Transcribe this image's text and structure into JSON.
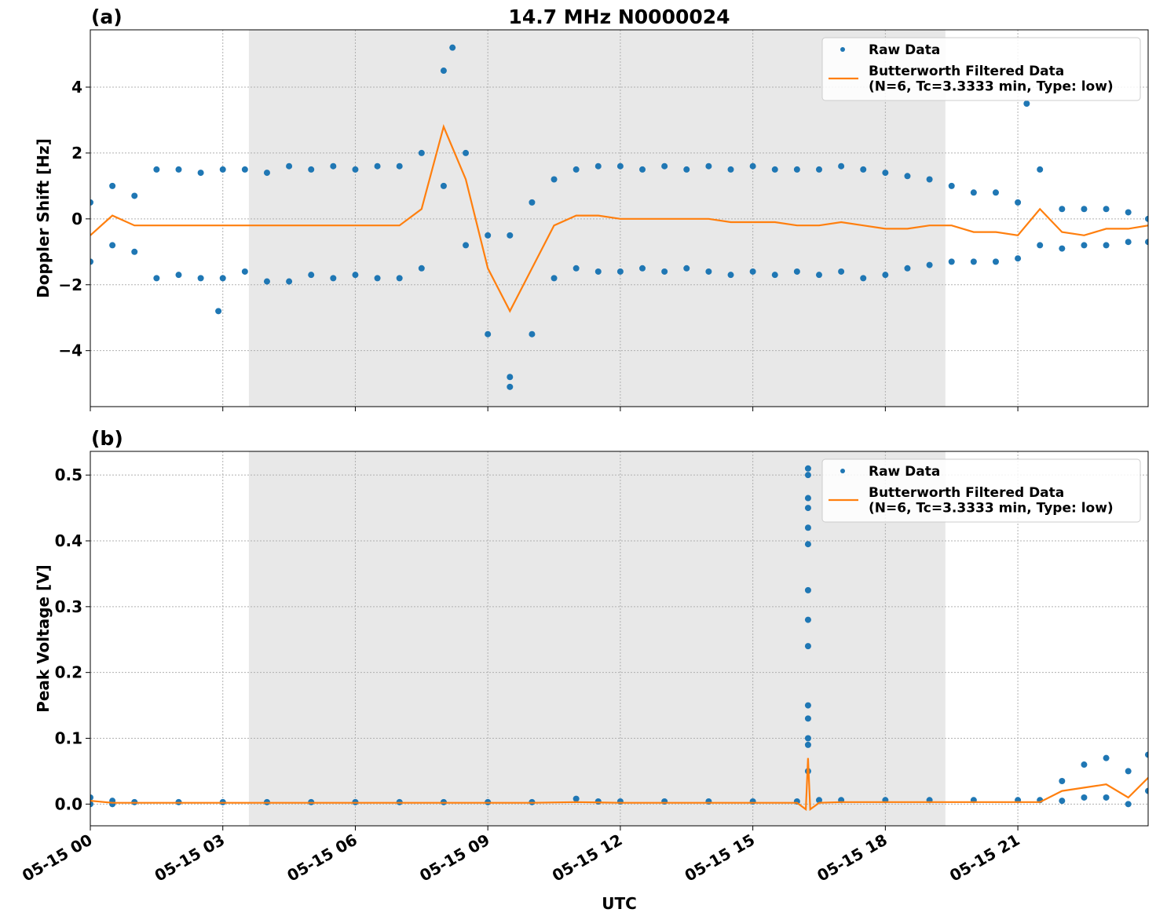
{
  "chart_data": [
    {
      "type": "scatter-line",
      "title": "14.7 MHz N0000024",
      "panel_label": "(a)",
      "ylabel": "Doppler Shift [Hz]",
      "xlim": [
        0,
        23.95
      ],
      "ylim": [
        -5.7,
        5.74
      ],
      "xticks": [
        0,
        3,
        6,
        9,
        12,
        15,
        18,
        21
      ],
      "yticks": [
        {
          "value": -4,
          "label": "−4"
        },
        {
          "value": -2,
          "label": "−2"
        },
        0,
        2,
        4
      ],
      "grid": true,
      "legend": "upper right",
      "shaded_xrange": [
        3.59,
        19.36
      ],
      "shade_color": "#e8e8e8",
      "series": [
        {
          "name": "Raw Data",
          "color": "#1f77b4",
          "mode": "points",
          "x": [
            0,
            0,
            0.5,
            0.5,
            1,
            1,
            1.5,
            1.5,
            2,
            2,
            2.5,
            2.5,
            3,
            3,
            3.5,
            3.5,
            4,
            4,
            4.5,
            4.5,
            5,
            5,
            5.5,
            5.5,
            6,
            6,
            6.5,
            6.5,
            7,
            7,
            7.5,
            7.5,
            8,
            8,
            8.5,
            8.5,
            9,
            9,
            9.5,
            9.5,
            10,
            10,
            10.5,
            10.5,
            11,
            11,
            11.5,
            11.5,
            12,
            12,
            12.5,
            12.5,
            13,
            13,
            13.5,
            13.5,
            14,
            14,
            14.5,
            14.5,
            15,
            15,
            15.5,
            15.5,
            16,
            16,
            16.5,
            16.5,
            17,
            17,
            17.5,
            17.5,
            18,
            18,
            18.5,
            18.5,
            19,
            19,
            19.5,
            19.5,
            20,
            20,
            20.5,
            20.5,
            21,
            21,
            21.5,
            21.5,
            22,
            22,
            22.5,
            22.5,
            23,
            23,
            23.5,
            23.5,
            23.95,
            23.95,
            8.2,
            9.5,
            21.2,
            2.9
          ],
          "values": [
            0.5,
            -1.3,
            1.0,
            -0.8,
            0.7,
            -1.0,
            1.5,
            -1.8,
            1.5,
            -1.7,
            1.4,
            -1.8,
            1.5,
            -1.8,
            1.5,
            -1.6,
            1.4,
            -1.9,
            1.6,
            -1.9,
            1.5,
            -1.7,
            1.6,
            -1.8,
            1.5,
            -1.7,
            1.6,
            -1.8,
            1.6,
            -1.8,
            2.0,
            -1.5,
            4.5,
            1.0,
            2.0,
            -0.8,
            -0.5,
            -3.5,
            -0.5,
            -4.8,
            0.5,
            -3.5,
            1.2,
            -1.8,
            1.5,
            -1.5,
            1.6,
            -1.6,
            1.6,
            -1.6,
            1.5,
            -1.5,
            1.6,
            -1.6,
            1.5,
            -1.5,
            1.6,
            -1.6,
            1.5,
            -1.7,
            1.6,
            -1.6,
            1.5,
            -1.7,
            1.5,
            -1.6,
            1.5,
            -1.7,
            1.6,
            -1.6,
            1.5,
            -1.8,
            1.4,
            -1.7,
            1.3,
            -1.5,
            1.2,
            -1.4,
            1.0,
            -1.3,
            0.8,
            -1.3,
            0.8,
            -1.3,
            0.5,
            -1.2,
            1.5,
            -0.8,
            0.3,
            -0.9,
            0.3,
            -0.8,
            0.3,
            -0.8,
            0.2,
            -0.7,
            0.0,
            -0.7,
            5.2,
            -5.1,
            3.5,
            -2.8
          ]
        },
        {
          "name": "Butterworth Filtered Data\n(N=6, Tc=3.3333 min, Type: low)",
          "color": "#ff7f0e",
          "mode": "line",
          "x": [
            0,
            0.5,
            1,
            1.5,
            2,
            2.5,
            3,
            3.5,
            4,
            4.5,
            5,
            5.5,
            6,
            6.5,
            7,
            7.5,
            8,
            8.5,
            9,
            9.5,
            10,
            10.5,
            11,
            11.5,
            12,
            12.5,
            13,
            13.5,
            14,
            14.5,
            15,
            15.5,
            16,
            16.5,
            17,
            17.5,
            18,
            18.5,
            19,
            19.5,
            20,
            20.5,
            21,
            21.5,
            22,
            22.5,
            23,
            23.5,
            23.95
          ],
          "values": [
            -0.5,
            0.1,
            -0.2,
            -0.2,
            -0.2,
            -0.2,
            -0.2,
            -0.2,
            -0.2,
            -0.2,
            -0.2,
            -0.2,
            -0.2,
            -0.2,
            -0.2,
            0.3,
            2.8,
            1.2,
            -1.5,
            -2.8,
            -1.5,
            -0.2,
            0.1,
            0.1,
            0.0,
            0.0,
            0.0,
            0.0,
            0.0,
            -0.1,
            -0.1,
            -0.1,
            -0.2,
            -0.2,
            -0.1,
            -0.2,
            -0.3,
            -0.3,
            -0.2,
            -0.2,
            -0.4,
            -0.4,
            -0.5,
            0.3,
            -0.4,
            -0.5,
            -0.3,
            -0.3,
            -0.2
          ]
        }
      ]
    },
    {
      "type": "scatter-line",
      "panel_label": "(b)",
      "ylabel": "Peak Voltage [V]",
      "xlabel": "UTC",
      "xlim": [
        0,
        23.95
      ],
      "ylim": [
        -0.033,
        0.536
      ],
      "xticks": [
        {
          "value": 0,
          "label": "05-15 00"
        },
        {
          "value": 3,
          "label": "05-15 03"
        },
        {
          "value": 6,
          "label": "05-15 06"
        },
        {
          "value": 9,
          "label": "05-15 09"
        },
        {
          "value": 12,
          "label": "05-15 12"
        },
        {
          "value": 15,
          "label": "05-15 15"
        },
        {
          "value": 18,
          "label": "05-15 18"
        },
        {
          "value": 21,
          "label": "05-15 21"
        }
      ],
      "yticks": [
        {
          "value": 0,
          "label": "0.0"
        },
        0.1,
        0.2,
        0.3,
        0.4,
        0.5
      ],
      "grid": true,
      "legend": "upper right",
      "shaded_xrange": [
        3.59,
        19.36
      ],
      "shade_color": "#e8e8e8",
      "series": [
        {
          "name": "Raw Data",
          "color": "#1f77b4",
          "mode": "points",
          "x": [
            0,
            0,
            0.5,
            0.5,
            1,
            2,
            3,
            4,
            5,
            6,
            7,
            8,
            9,
            10,
            11,
            11.5,
            12,
            13,
            14,
            15,
            16,
            16.5,
            17,
            18,
            19,
            20,
            21,
            21.5,
            22,
            22,
            22.5,
            22.5,
            23,
            23,
            23.5,
            23.5,
            23.95,
            23.95,
            16.25,
            16.25,
            16.25,
            16.25,
            16.25,
            16.25,
            16.25,
            16.25,
            16.25,
            16.25,
            16.25,
            16.25,
            16.25,
            16.25
          ],
          "values": [
            0.01,
            0.0,
            0.005,
            0.0,
            0.003,
            0.003,
            0.003,
            0.003,
            0.003,
            0.003,
            0.003,
            0.003,
            0.003,
            0.003,
            0.008,
            0.004,
            0.004,
            0.004,
            0.004,
            0.004,
            0.004,
            0.006,
            0.006,
            0.006,
            0.006,
            0.006,
            0.006,
            0.006,
            0.035,
            0.005,
            0.06,
            0.01,
            0.07,
            0.01,
            0.05,
            0.0,
            0.075,
            0.02,
            0.51,
            0.5,
            0.465,
            0.45,
            0.42,
            0.395,
            0.325,
            0.28,
            0.24,
            0.15,
            0.13,
            0.1,
            0.09,
            0.05
          ]
        },
        {
          "name": "Butterworth Filtered Data\n(N=6, Tc=3.3333 min, Type: low)",
          "color": "#ff7f0e",
          "mode": "line",
          "x": [
            0,
            0.5,
            1,
            2,
            3,
            4,
            5,
            6,
            7,
            8,
            9,
            10,
            11,
            12,
            13,
            14,
            15,
            16,
            16.2,
            16.25,
            16.3,
            16.5,
            17,
            18,
            19,
            20,
            21,
            21.5,
            22,
            22.5,
            23,
            23.5,
            23.95
          ],
          "values": [
            0.005,
            0.002,
            0.002,
            0.002,
            0.002,
            0.002,
            0.002,
            0.002,
            0.002,
            0.002,
            0.002,
            0.002,
            0.003,
            0.002,
            0.002,
            0.002,
            0.002,
            0.002,
            -0.008,
            0.07,
            -0.008,
            0.002,
            0.003,
            0.003,
            0.003,
            0.003,
            0.003,
            0.003,
            0.02,
            0.025,
            0.03,
            0.01,
            0.04
          ]
        }
      ]
    }
  ]
}
